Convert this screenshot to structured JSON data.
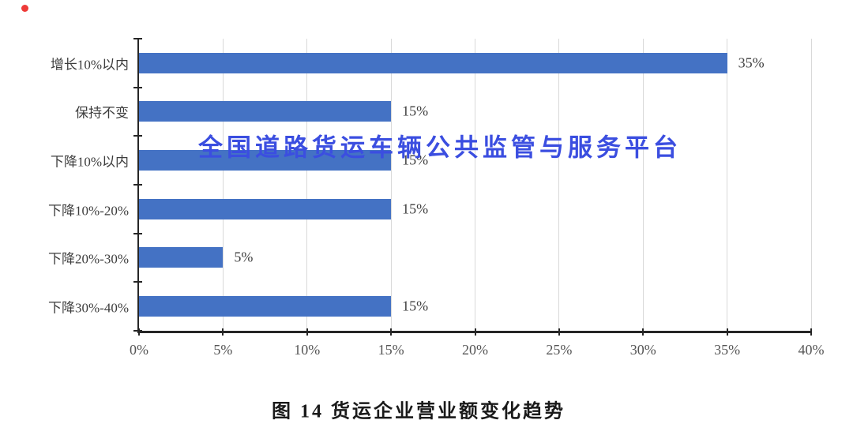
{
  "page": {
    "background": "#ffffff"
  },
  "indicator": {
    "color": "#ee3a38"
  },
  "watermark": {
    "text": "全国道路货运车辆公共监管与服务平台",
    "color": "#3b4ee0"
  },
  "caption": "图 14 货运企业营业额变化趋势",
  "chart_data": {
    "type": "bar",
    "orientation": "horizontal",
    "title": "图 14 货运企业营业额变化趋势",
    "categories": [
      "增长10%以内",
      "保持不变",
      "下降10%以内",
      "下降10%-20%",
      "下降20%-30%",
      "下降30%-40%"
    ],
    "values": [
      35,
      15,
      15,
      15,
      5,
      15
    ],
    "data_labels": [
      "35%",
      "15%",
      "15%",
      "15%",
      "5%",
      "15%"
    ],
    "x_ticks": [
      "0%",
      "5%",
      "10%",
      "15%",
      "20%",
      "25%",
      "30%",
      "35%",
      "40%"
    ],
    "x_tick_values": [
      0,
      5,
      10,
      15,
      20,
      25,
      30,
      35,
      40
    ],
    "xlim": [
      0,
      40
    ],
    "xlabel": "",
    "ylabel": "",
    "grid": true,
    "legend": false,
    "bar_color": "#4472c4",
    "gridline_color": "#d9d9d9",
    "axis_color": "#262626",
    "tick_label_color": "#555555",
    "category_label_color": "#3d3d3d",
    "data_label_color": "#3f3f3f"
  }
}
